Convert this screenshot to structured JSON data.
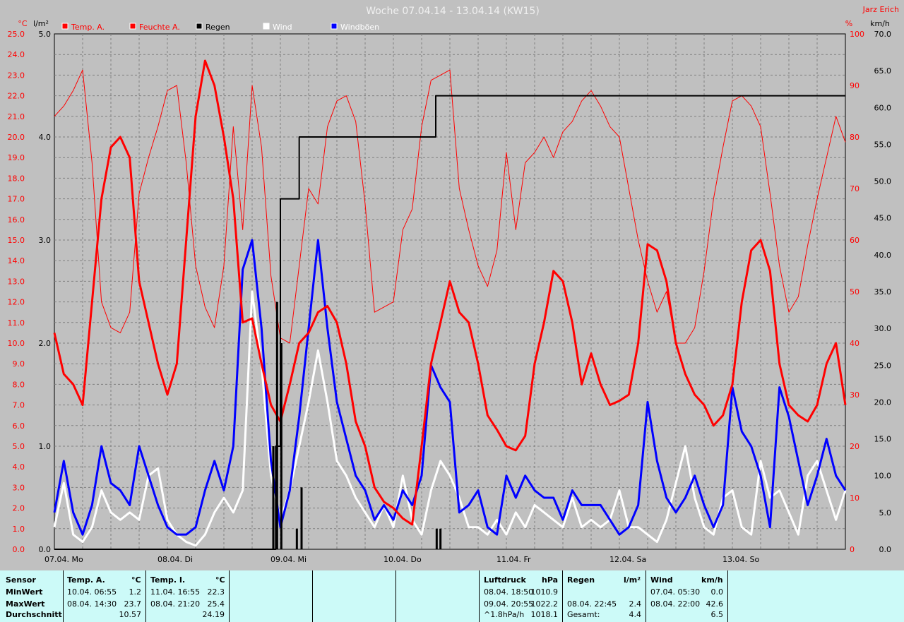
{
  "chart_data": {
    "type": "line",
    "title": "Woche 07.04.14 - 13.04.14 (KW15)",
    "author": "Jarz Erich",
    "left_axes": {
      "temp": {
        "unit": "°C",
        "ylim": [
          0,
          25
        ],
        "ticks": [
          "0.0",
          "1.0",
          "2.0",
          "3.0",
          "4.0",
          "5.0",
          "6.0",
          "7.0",
          "8.0",
          "9.0",
          "10.0",
          "11.0",
          "12.0",
          "13.0",
          "14.0",
          "15.0",
          "16.0",
          "17.0",
          "18.0",
          "19.0",
          "20.0",
          "21.0",
          "22.0",
          "23.0",
          "24.0",
          "25.0"
        ]
      },
      "rain": {
        "unit": "l/m²",
        "ylim": [
          0,
          5
        ],
        "ticks": [
          "0.0",
          "1.0",
          "2.0",
          "3.0",
          "4.0",
          "5.0"
        ]
      }
    },
    "right_axes": {
      "humidity": {
        "unit": "%",
        "ylim": [
          0,
          100
        ],
        "ticks": [
          "0",
          "10",
          "20",
          "30",
          "40",
          "50",
          "60",
          "70",
          "80",
          "90",
          "100"
        ]
      },
      "wind": {
        "unit": "km/h",
        "ylim": [
          0,
          70
        ],
        "ticks": [
          "0.0",
          "5.0",
          "10.0",
          "15.0",
          "20.0",
          "25.0",
          "30.0",
          "35.0",
          "40.0",
          "45.0",
          "50.0",
          "55.0",
          "60.0",
          "65.0",
          "70.0"
        ]
      }
    },
    "x_days": [
      "07.04.  Mo",
      "08.04.  Di",
      "09.04.  Mi",
      "10.04.  Do",
      "11.04.  Fr",
      "12.04.  Sa",
      "13.04.  So"
    ],
    "legend": [
      {
        "name": "Temp. A.",
        "color": "#ff0000"
      },
      {
        "name": "Feuchte A.",
        "color": "#ff0000"
      },
      {
        "name": "Regen",
        "color": "#000000"
      },
      {
        "name": "Wind",
        "color": "#ffffff"
      },
      {
        "name": "Windböen",
        "color": "#0000ff"
      }
    ],
    "series": [
      {
        "name": "Temp. A.",
        "unit": "°C",
        "color": "#ff0000",
        "x_hours": [
          0,
          2,
          4,
          6,
          8,
          10,
          12,
          14,
          16,
          18,
          20,
          22,
          24,
          26,
          28,
          30,
          32,
          34,
          36,
          38,
          40,
          42,
          44,
          46,
          48,
          50,
          52,
          54,
          56,
          58,
          60,
          62,
          64,
          66,
          68,
          70,
          72,
          74,
          76,
          78,
          80,
          82,
          84,
          86,
          88,
          90,
          92,
          94,
          96,
          98,
          100,
          102,
          104,
          106,
          108,
          110,
          112,
          114,
          116,
          118,
          120,
          122,
          124,
          126,
          128,
          130,
          132,
          134,
          136,
          138,
          140,
          142,
          144,
          146,
          148,
          150,
          152,
          154,
          156,
          158,
          160,
          162,
          164,
          166,
          168
        ],
        "values": [
          10.5,
          8.5,
          8.0,
          7.0,
          12.0,
          17.0,
          19.5,
          20.0,
          19.0,
          13.0,
          11.0,
          9.0,
          7.5,
          9.0,
          15.0,
          21.0,
          23.7,
          22.5,
          20.0,
          17.0,
          11.0,
          11.2,
          9.0,
          7.0,
          6.2,
          8.0,
          10.0,
          10.5,
          11.5,
          11.8,
          11.0,
          9.0,
          6.2,
          5.0,
          3.0,
          2.3,
          2.0,
          1.5,
          1.2,
          5.0,
          9.0,
          11.0,
          13.0,
          11.5,
          11.0,
          9.0,
          6.5,
          5.8,
          5.0,
          4.8,
          5.5,
          9.0,
          11.0,
          13.5,
          13.0,
          11.0,
          8.0,
          9.5,
          8.0,
          7.0,
          7.2,
          7.5,
          10.0,
          14.8,
          14.5,
          13.0,
          10.0,
          8.5,
          7.5,
          7.0,
          6.0,
          6.5,
          8.0,
          12.0,
          14.5,
          15.0,
          13.5,
          9.0,
          7.0,
          6.5,
          6.2,
          7.0,
          9.0,
          10.0,
          7.0
        ]
      },
      {
        "name": "Feuchte A.",
        "unit": "%",
        "color": "#ff0000",
        "x_hours": [
          0,
          2,
          4,
          6,
          8,
          10,
          12,
          14,
          16,
          18,
          20,
          22,
          24,
          26,
          28,
          30,
          32,
          34,
          36,
          38,
          40,
          42,
          44,
          46,
          48,
          50,
          52,
          54,
          56,
          58,
          60,
          62,
          64,
          66,
          68,
          70,
          72,
          74,
          76,
          78,
          80,
          82,
          84,
          86,
          88,
          90,
          92,
          94,
          96,
          98,
          100,
          102,
          104,
          106,
          108,
          110,
          112,
          114,
          116,
          118,
          120,
          122,
          124,
          126,
          128,
          130,
          132,
          134,
          136,
          138,
          140,
          142,
          144,
          146,
          148,
          150,
          152,
          154,
          156,
          158,
          160,
          162,
          164,
          166,
          168
        ],
        "values": [
          84,
          86,
          89,
          93,
          75,
          48,
          43,
          42,
          46,
          69,
          76,
          82,
          89,
          90,
          75,
          55,
          47,
          43,
          55,
          82,
          62,
          90,
          78,
          53,
          41,
          40,
          55,
          70,
          67,
          82,
          87,
          88,
          83,
          67,
          46,
          47,
          48,
          62,
          66,
          82,
          91,
          92,
          93,
          70,
          62,
          55,
          51,
          58,
          77,
          62,
          75,
          77,
          80,
          76,
          81,
          83,
          87,
          89,
          86,
          82,
          80,
          70,
          60,
          52,
          46,
          50,
          40,
          40,
          43,
          54,
          68,
          78,
          87,
          88,
          86,
          82,
          69,
          55,
          46,
          49,
          59,
          68,
          76,
          84,
          79
        ]
      },
      {
        "name": "Regen",
        "unit": "l/m²",
        "color": "#000000",
        "x_hours": [
          0,
          46,
          47,
          48,
          50,
          51,
          52,
          53,
          80,
          81,
          82,
          168
        ],
        "values": [
          0,
          0,
          1.0,
          3.4,
          3.4,
          3.4,
          4.0,
          4.0,
          4.0,
          4.4,
          4.4,
          4.4
        ]
      },
      {
        "name": "Wind",
        "unit": "km/h",
        "color": "#ffffff",
        "x_hours": [
          0,
          2,
          4,
          6,
          8,
          10,
          12,
          14,
          16,
          18,
          20,
          22,
          24,
          26,
          28,
          30,
          32,
          34,
          36,
          38,
          40,
          42,
          44,
          46,
          48,
          50,
          52,
          54,
          56,
          58,
          60,
          62,
          64,
          66,
          68,
          70,
          72,
          74,
          76,
          78,
          80,
          82,
          84,
          86,
          88,
          90,
          92,
          94,
          96,
          98,
          100,
          102,
          104,
          106,
          108,
          110,
          112,
          114,
          116,
          118,
          120,
          122,
          124,
          126,
          128,
          130,
          132,
          134,
          136,
          138,
          140,
          142,
          144,
          146,
          148,
          150,
          152,
          154,
          156,
          158,
          160,
          162,
          164,
          166,
          168
        ],
        "values": [
          3,
          9,
          2,
          1,
          3,
          8,
          5,
          4,
          5,
          4,
          10,
          11,
          4,
          2,
          1,
          0.5,
          2,
          5,
          7,
          5,
          8,
          35,
          25,
          10,
          4,
          8,
          14,
          20,
          27,
          20,
          12,
          10,
          7,
          5,
          3,
          6,
          3,
          10,
          4,
          2,
          8,
          12,
          10,
          7,
          3,
          3,
          2,
          4,
          2,
          5,
          3,
          6,
          5,
          4,
          3,
          7,
          3,
          4,
          3,
          4,
          8,
          3,
          3,
          2,
          1,
          4,
          9,
          14,
          7,
          3,
          2,
          7,
          8,
          3,
          2,
          12,
          7,
          8,
          5,
          2,
          10,
          12,
          8,
          4,
          8
        ]
      },
      {
        "name": "Windböen",
        "unit": "km/h",
        "color": "#0000ff",
        "x_hours": [
          0,
          2,
          4,
          6,
          8,
          10,
          12,
          14,
          16,
          18,
          20,
          22,
          24,
          26,
          28,
          30,
          32,
          34,
          36,
          38,
          40,
          42,
          44,
          46,
          48,
          50,
          52,
          54,
          56,
          58,
          60,
          62,
          64,
          66,
          68,
          70,
          72,
          74,
          76,
          78,
          80,
          82,
          84,
          86,
          88,
          90,
          92,
          94,
          96,
          98,
          100,
          102,
          104,
          106,
          108,
          110,
          112,
          114,
          116,
          118,
          120,
          122,
          124,
          126,
          128,
          130,
          132,
          134,
          136,
          138,
          140,
          142,
          144,
          146,
          148,
          150,
          152,
          154,
          156,
          158,
          160,
          162,
          164,
          166,
          168
        ],
        "values": [
          5,
          12,
          5,
          2,
          6,
          14,
          9,
          8,
          6,
          14,
          10,
          6,
          3,
          2,
          2,
          3,
          8,
          12,
          8,
          14,
          38,
          42,
          30,
          12,
          3,
          8,
          18,
          30,
          42,
          30,
          20,
          15,
          10,
          8,
          4,
          6,
          4,
          8,
          6,
          10,
          25,
          22,
          20,
          5,
          6,
          8,
          3,
          2,
          10,
          7,
          10,
          8,
          7,
          7,
          4,
          8,
          6,
          6,
          6,
          4,
          2,
          3,
          6,
          20,
          12,
          7,
          5,
          7,
          10,
          6,
          3,
          6,
          22,
          16,
          14,
          10,
          3,
          22,
          18,
          12,
          6,
          10,
          15,
          10,
          8
        ]
      }
    ]
  },
  "stats_panel": {
    "sensor": {
      "label": "Sensor",
      "rows": [
        "MinWert",
        "MaxWert",
        "Durchschnitt"
      ]
    },
    "temp_a": {
      "header": "Temp. A.",
      "unit": "°C",
      "min_time": "10.04.  06:55",
      "min_val": "1.2",
      "max_time": "08.04.  14:30",
      "max_val": "23.7",
      "avg_val": "10.57"
    },
    "temp_i": {
      "header": "Temp. I.",
      "unit": "°C",
      "min_time": "11.04.  16:55",
      "min_val": "22.3",
      "max_time": "08.04.  21:20",
      "max_val": "25.4",
      "avg_val": "24.19"
    },
    "luftdruck": {
      "header": "Luftdruck",
      "unit": "hPa",
      "min_time": "08.04.  18:50",
      "min_val": "1010.9",
      "max_time": "09.04.  20:55",
      "max_val": "1022.2",
      "trend_label": "^1.8hPa/h",
      "avg_val": "1018.1"
    },
    "regen": {
      "header": "Regen",
      "unit": "l/m²",
      "max_time": "08.04.  22:45",
      "max_val": "2.4",
      "total_label": "Gesamt:",
      "total_val": "4.4"
    },
    "wind": {
      "header": "Wind",
      "unit": "km/h",
      "min_time": "07.04.  05:30",
      "min_val": "0.0",
      "max_time": "08.04.  22:00",
      "max_val": "42.6",
      "avg_val": "6.5"
    }
  }
}
